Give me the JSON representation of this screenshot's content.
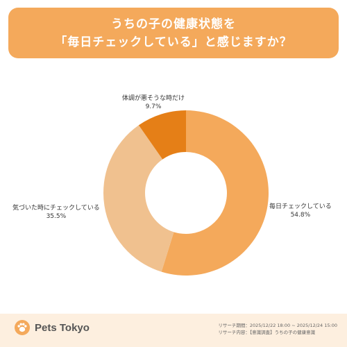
{
  "title": {
    "line1": "うちの子の健康状態を",
    "line2": "「毎日チェックしている」と感じますか？"
  },
  "chart_data": {
    "type": "pie",
    "style": "donut",
    "slices": [
      {
        "label": "毎日チェックしている",
        "value": 54.8,
        "value_label": "54.8%",
        "color": "#f4a95b"
      },
      {
        "label": "気づいた時にチェックしている",
        "value": 35.5,
        "value_label": "35.5%",
        "color": "#f0c18f"
      },
      {
        "label": "体調が悪そうな時だけ",
        "value": 9.7,
        "value_label": "9.7%",
        "color": "#e57f17"
      }
    ]
  },
  "footer": {
    "brand": "Pets Tokyo",
    "period": "リサーチ期間：2025/12/22 18:00 ~ 2025/12/24 15:00",
    "content": "リサーチ内容：【意識調査】うちの子の健康意識"
  },
  "colors": {
    "accent": "#f4a95b",
    "footer_bg": "#fdefdf",
    "logo": "#f4a95b"
  }
}
